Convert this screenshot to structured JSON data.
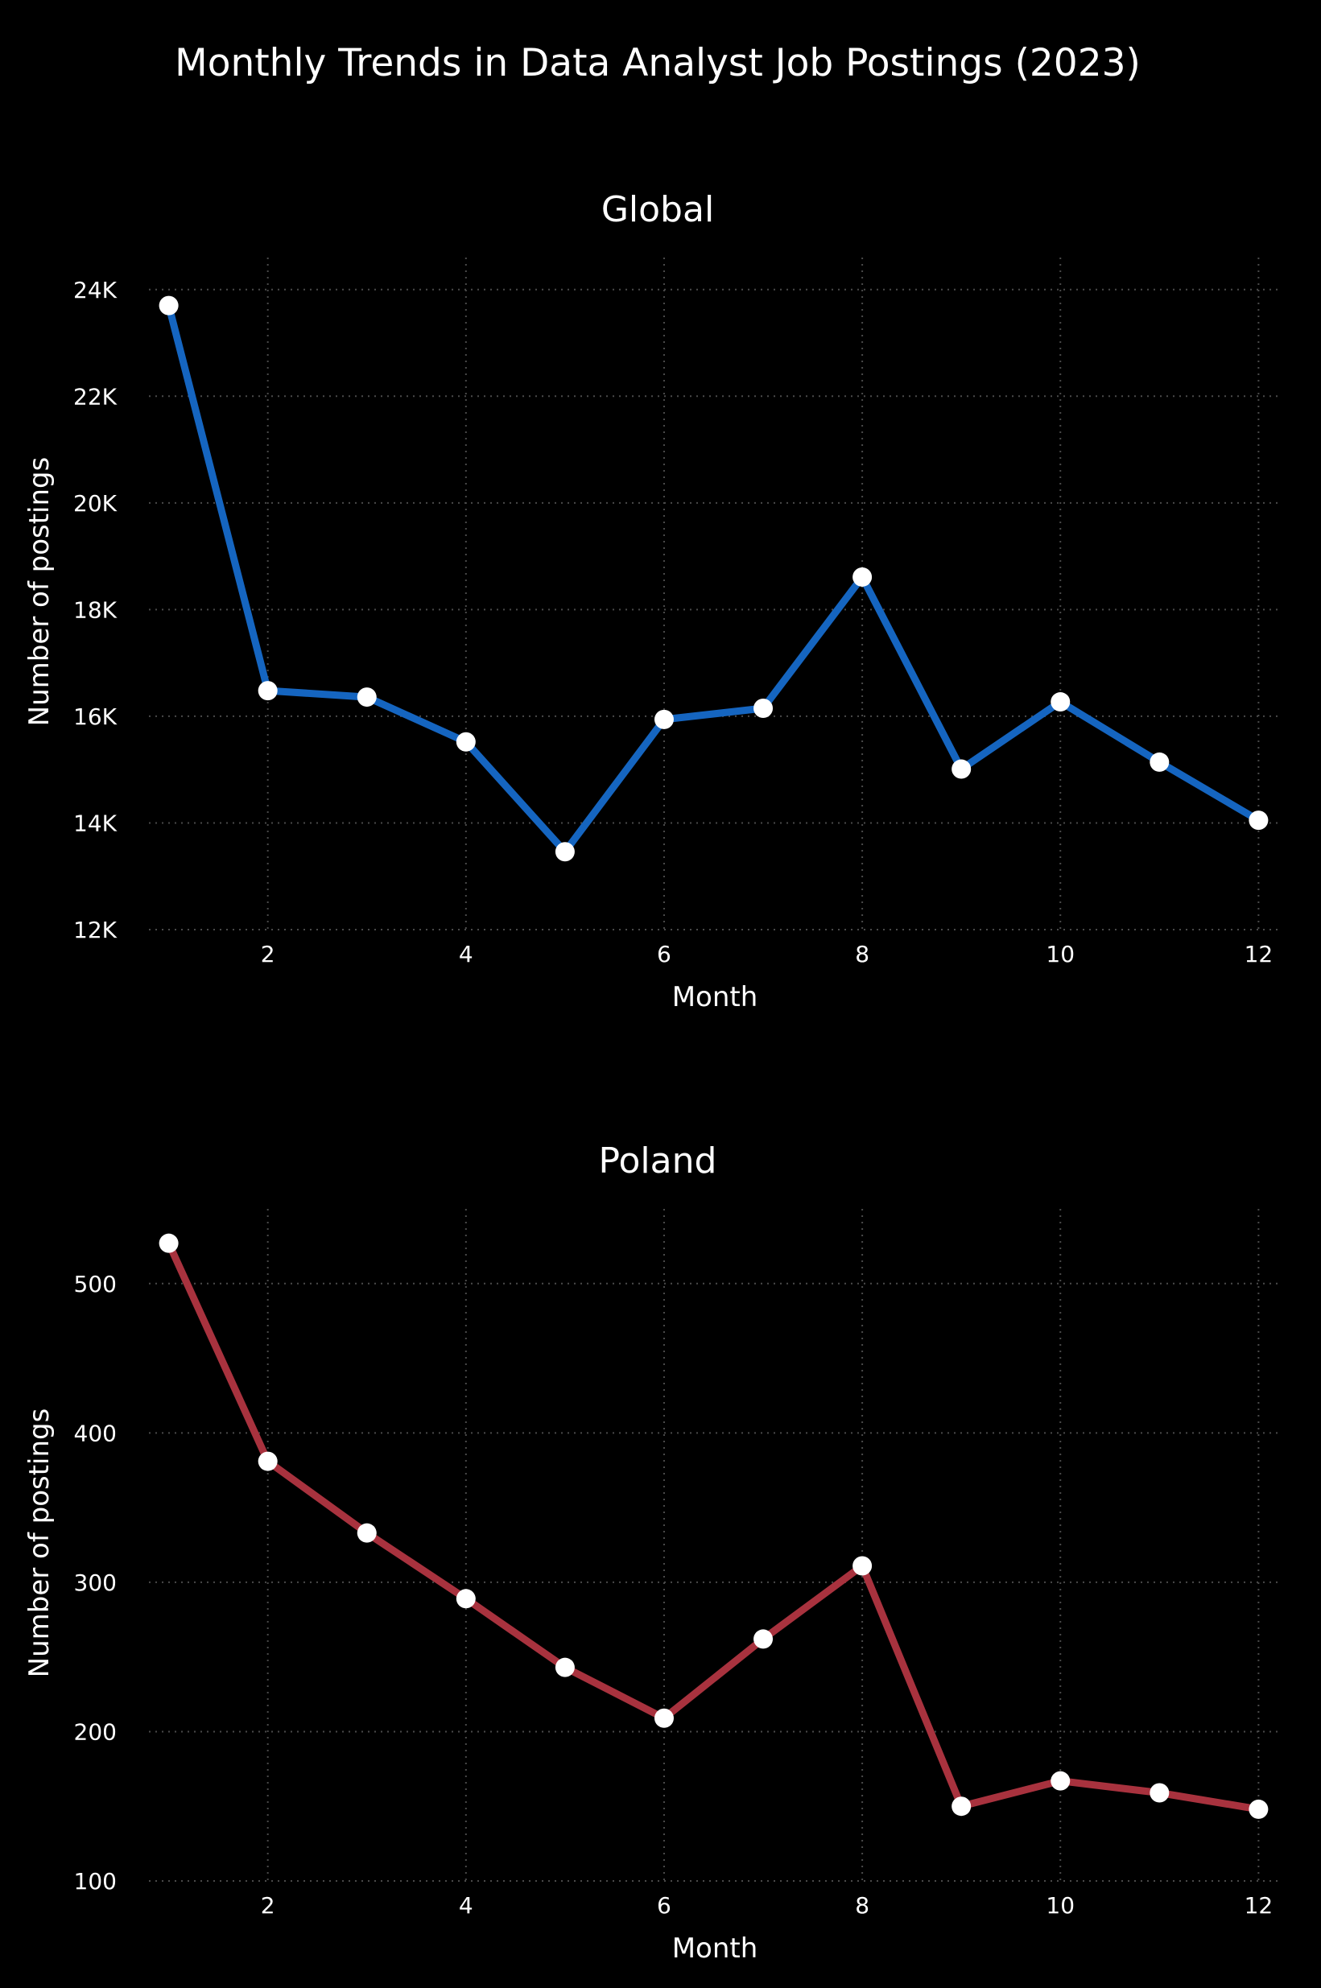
{
  "figure": {
    "title": "Monthly Trends in Data Analyst Job Postings (2023)",
    "background": "#000000"
  },
  "chart_data": [
    {
      "type": "line",
      "title": "Global",
      "xlabel": "Month",
      "ylabel": "Number of postings",
      "x": [
        1,
        2,
        3,
        4,
        5,
        6,
        7,
        8,
        9,
        10,
        11,
        12
      ],
      "series": [
        {
          "values": [
            23700,
            16480,
            16360,
            15520,
            13460,
            15940,
            16150,
            18610,
            15010,
            16270,
            15140,
            14050
          ],
          "color": "#1565C0"
        }
      ],
      "xlim": [
        1,
        12
      ],
      "ylim": [
        12000,
        24600
      ],
      "xticks": [
        2,
        4,
        6,
        8,
        10,
        12
      ],
      "yticks": [
        12000,
        14000,
        16000,
        18000,
        20000,
        22000,
        24000
      ],
      "ytick_labels": [
        "12K",
        "14K",
        "16K",
        "18K",
        "20K",
        "22K",
        "24K"
      ],
      "grid": true,
      "marker_color": "#ffffff"
    },
    {
      "type": "line",
      "title": "Poland",
      "xlabel": "Month",
      "ylabel": "Number of postings",
      "x": [
        1,
        2,
        3,
        4,
        5,
        6,
        7,
        8,
        9,
        10,
        11,
        12
      ],
      "series": [
        {
          "values": [
            527,
            381,
            333,
            289,
            243,
            209,
            262,
            311,
            150,
            167,
            159,
            148
          ],
          "color": "#A8323E"
        }
      ],
      "xlim": [
        1,
        12
      ],
      "ylim": [
        100,
        550
      ],
      "xticks": [
        2,
        4,
        6,
        8,
        10,
        12
      ],
      "yticks": [
        100,
        200,
        300,
        400,
        500
      ],
      "ytick_labels": [
        "100",
        "200",
        "300",
        "400",
        "500"
      ],
      "grid": true,
      "marker_color": "#ffffff"
    }
  ]
}
